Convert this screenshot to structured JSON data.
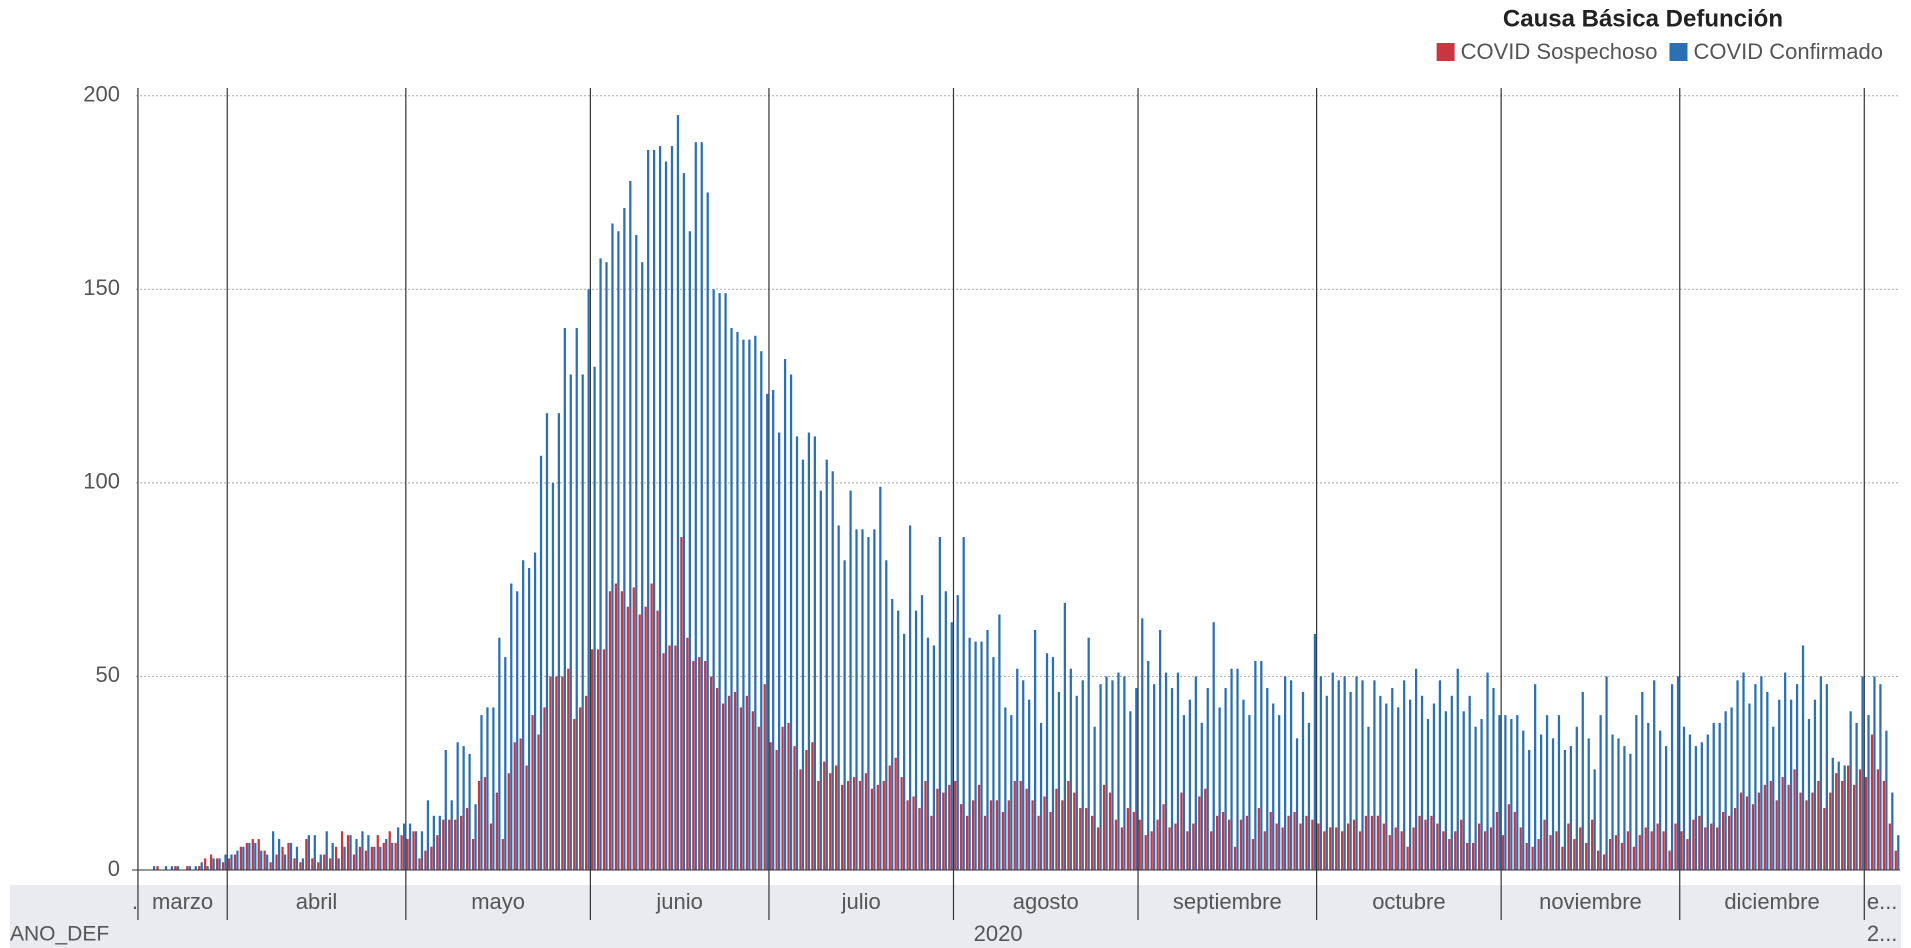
{
  "chart_data": {
    "type": "bar",
    "legend_title": "Causa Básica Defunción",
    "x_label": "ANO_DEF",
    "groups": [
      {
        "label": ".",
        "count": 1
      },
      {
        "label": "marzo",
        "count": 15
      },
      {
        "label": "abril",
        "count": 30
      },
      {
        "label": "mayo",
        "count": 31
      },
      {
        "label": "junio",
        "count": 30
      },
      {
        "label": "julio",
        "count": 31
      },
      {
        "label": "agosto",
        "count": 31
      },
      {
        "label": "septiembre",
        "count": 30
      },
      {
        "label": "octubre",
        "count": 31
      },
      {
        "label": "noviembre",
        "count": 30
      },
      {
        "label": "diciembre",
        "count": 31
      },
      {
        "label": "e...",
        "count": 6
      }
    ],
    "year_groups": [
      {
        "label": "2020",
        "count": 291
      },
      {
        "label": "2...",
        "count": 6
      }
    ],
    "ylim": [
      0,
      202
    ],
    "yticks": [
      0,
      50,
      100,
      150,
      200
    ],
    "grid": true,
    "legend_position": "top-right",
    "series": [
      {
        "name": "COVID Sospechoso",
        "color": "#c8373f",
        "values": [
          0,
          0,
          0,
          0,
          1,
          0,
          0,
          1,
          0,
          1,
          0,
          1,
          3,
          4,
          3,
          2,
          3,
          4,
          6,
          7,
          8,
          8,
          5,
          2,
          4,
          6,
          7,
          3,
          2,
          8,
          3,
          2,
          4,
          3,
          6,
          10,
          9,
          4,
          6,
          5,
          6,
          9,
          7,
          10,
          7,
          9,
          8,
          10,
          3,
          5,
          6,
          9,
          13,
          13,
          13,
          14,
          16,
          8,
          23,
          24,
          12,
          20,
          8,
          25,
          33,
          34,
          27,
          40,
          35,
          42,
          50,
          50,
          50,
          52,
          39,
          42,
          45,
          57,
          57,
          57,
          72,
          74,
          72,
          68,
          73,
          66,
          68,
          74,
          67,
          56,
          58,
          58,
          86,
          60,
          54,
          55,
          54,
          50,
          47,
          43,
          45,
          46,
          42,
          45,
          41,
          37,
          48,
          33,
          31,
          37,
          38,
          32,
          26,
          31,
          33,
          23,
          28,
          25,
          27,
          22,
          23,
          24,
          23,
          25,
          21,
          22,
          23,
          27,
          29,
          24,
          18,
          19,
          16,
          23,
          14,
          21,
          20,
          22,
          23,
          17,
          14,
          18,
          22,
          14,
          18,
          18,
          15,
          18,
          23,
          23,
          21,
          18,
          14,
          19,
          15,
          21,
          18,
          23,
          20,
          16,
          16,
          14,
          11,
          22,
          20,
          13,
          11,
          16,
          15,
          13,
          9,
          10,
          13,
          17,
          11,
          12,
          20,
          10,
          12,
          19,
          21,
          10,
          14,
          15,
          13,
          6,
          13,
          14,
          8,
          16,
          10,
          15,
          12,
          11,
          14,
          15,
          12,
          14,
          13,
          12,
          10,
          11,
          11,
          10,
          12,
          13,
          10,
          14,
          14,
          14,
          12,
          9,
          11,
          10,
          6,
          11,
          14,
          13,
          14,
          12,
          10,
          8,
          10,
          13,
          7,
          7,
          12,
          10,
          11,
          15,
          9,
          17,
          15,
          11,
          7,
          6,
          8,
          13,
          9,
          10,
          6,
          12,
          8,
          11,
          7,
          13,
          5,
          4,
          8,
          9,
          7,
          10,
          6,
          9,
          11,
          10,
          12,
          10,
          5,
          12,
          10,
          8,
          13,
          14,
          11,
          12,
          11,
          15,
          14,
          16,
          20,
          19,
          17,
          20,
          22,
          23,
          18,
          24,
          22,
          26,
          20,
          18,
          20,
          23,
          16,
          20,
          25,
          23,
          27,
          22,
          26,
          24,
          35,
          26,
          23,
          12,
          5
        ]
      },
      {
        "name": "COVID Confirmado",
        "color": "#2b70b3",
        "values": [
          0,
          0,
          0,
          1,
          0,
          1,
          1,
          1,
          0,
          1,
          1,
          2,
          1,
          3,
          3,
          4,
          4,
          5,
          6,
          7,
          7,
          5,
          4,
          10,
          8,
          4,
          7,
          6,
          3,
          9,
          9,
          4,
          10,
          7,
          3,
          6,
          9,
          8,
          10,
          9,
          6,
          6,
          8,
          7,
          11,
          12,
          12,
          10,
          10,
          18,
          14,
          14,
          31,
          18,
          33,
          32,
          30,
          17,
          40,
          42,
          42,
          60,
          55,
          74,
          72,
          80,
          78,
          82,
          107,
          118,
          100,
          118,
          140,
          128,
          140,
          128,
          150,
          130,
          158,
          157,
          167,
          165,
          171,
          178,
          164,
          157,
          186,
          186,
          187,
          183,
          187,
          195,
          180,
          165,
          188,
          188,
          175,
          150,
          149,
          149,
          140,
          139,
          137,
          137,
          138,
          134,
          123,
          124,
          113,
          132,
          128,
          112,
          106,
          113,
          112,
          98,
          106,
          103,
          89,
          80,
          98,
          88,
          88,
          86,
          88,
          99,
          80,
          70,
          67,
          61,
          89,
          67,
          71,
          60,
          58,
          86,
          72,
          64,
          71,
          86,
          60,
          59,
          59,
          62,
          55,
          66,
          42,
          40,
          52,
          49,
          44,
          62,
          38,
          56,
          55,
          46,
          69,
          52,
          45,
          49,
          60,
          37,
          48,
          50,
          49,
          51,
          50,
          41,
          47,
          65,
          54,
          48,
          62,
          51,
          47,
          51,
          40,
          44,
          50,
          38,
          47,
          64,
          42,
          47,
          52,
          52,
          44,
          40,
          54,
          54,
          47,
          43,
          40,
          50,
          49,
          34,
          46,
          38,
          61,
          50,
          45,
          51,
          49,
          50,
          46,
          50,
          49,
          37,
          49,
          45,
          43,
          47,
          42,
          49,
          44,
          52,
          45,
          39,
          43,
          49,
          41,
          45,
          52,
          41,
          45,
          37,
          39,
          51,
          47,
          40,
          40,
          39,
          40,
          36,
          31,
          48,
          35,
          40,
          34,
          40,
          31,
          32,
          37,
          46,
          34,
          26,
          40,
          50,
          35,
          34,
          32,
          30,
          40,
          46,
          38,
          49,
          36,
          32,
          48,
          50,
          37,
          35,
          32,
          33,
          35,
          38,
          38,
          41,
          42,
          49,
          51,
          43,
          48,
          50,
          46,
          37,
          44,
          51,
          44,
          48,
          58,
          39,
          44,
          50,
          48,
          29,
          28,
          27,
          41,
          38,
          50,
          40,
          50,
          48,
          36,
          20,
          9
        ]
      }
    ]
  }
}
